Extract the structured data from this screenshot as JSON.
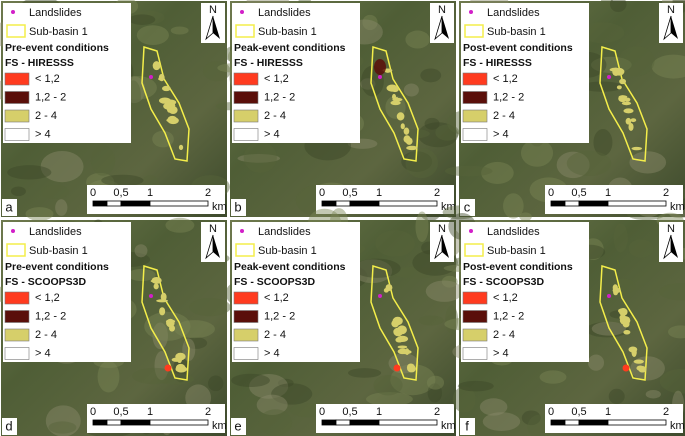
{
  "legend": {
    "landslides": "Landslides",
    "sub_basin": "Sub-basin 1",
    "classes": [
      {
        "label": "< 1,2",
        "color": "#ff3b1f"
      },
      {
        "label": "1,2 - 2",
        "color": "#5a0f0a"
      },
      {
        "label": "2 - 4",
        "color": "#d6cf6a"
      },
      {
        "label": "> 4",
        "color": "#ffffff"
      }
    ]
  },
  "north": "N",
  "scale": {
    "ticks": [
      "0",
      "0,5",
      "1",
      "2"
    ],
    "unit": "km"
  },
  "panels": [
    {
      "letter": "a",
      "conditions": "Pre-event conditions",
      "model": "FS - HIRESSS"
    },
    {
      "letter": "b",
      "conditions": "Peak-event conditions",
      "model": "FS - HIRESSS"
    },
    {
      "letter": "c",
      "conditions": "Post-event conditions",
      "model": "FS - HIRESSS"
    },
    {
      "letter": "d",
      "conditions": "Pre-event conditions",
      "model": "FS - SCOOPS3D"
    },
    {
      "letter": "e",
      "conditions": "Peak-event conditions",
      "model": "FS - SCOOPS3D"
    },
    {
      "letter": "f",
      "conditions": "Post-event conditions",
      "model": "FS - SCOOPS3D"
    }
  ]
}
